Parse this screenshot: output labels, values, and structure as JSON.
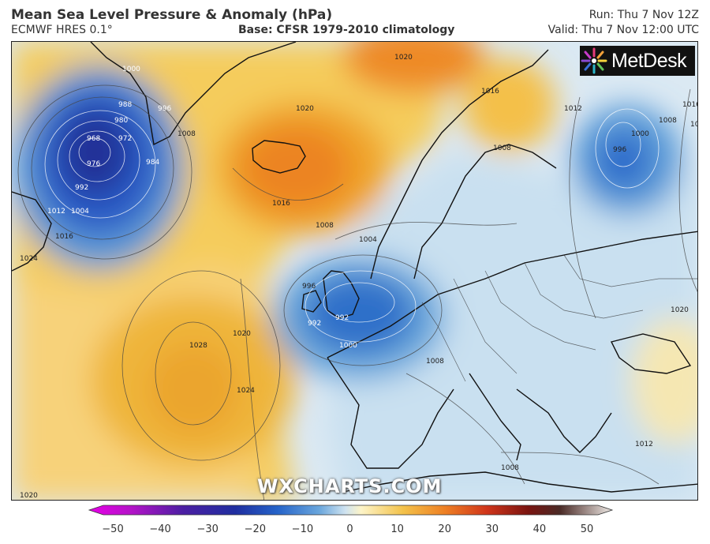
{
  "header": {
    "title": "Mean Sea Level Pressure & Anomaly (hPa)",
    "model": "ECMWF HRES 0.1°",
    "base": "Base: CFSR 1979-2010 climatology",
    "run": "Run: Thu 7 Nov 12Z",
    "valid": "Valid: Thu 7 Nov 12:00 UTC"
  },
  "logo": {
    "text": "MetDesk"
  },
  "watermark": "WXCHARTS.COM",
  "colorbar": {
    "ticks": [
      "−50",
      "−40",
      "−30",
      "−20",
      "−10",
      "0",
      "10",
      "20",
      "30",
      "40",
      "50"
    ],
    "colors": [
      "#e600e6",
      "#7a1fa8",
      "#23208f",
      "#1f50c8",
      "#4d94d6",
      "#aacde6",
      "#fdf4c8",
      "#f3c24a",
      "#ee8024",
      "#d83a1a",
      "#8c1a10",
      "#5c3f3a",
      "#e6e1dc"
    ]
  },
  "map": {
    "isobar_labels": [
      "1000",
      "988",
      "996",
      "980",
      "968",
      "972",
      "976",
      "984",
      "992",
      "1008",
      "1004",
      "1012",
      "1016",
      "1024",
      "1020",
      "1020",
      "1016",
      "1008",
      "1004",
      "996",
      "992",
      "992",
      "1000",
      "1008",
      "1028",
      "1020",
      "1024",
      "1020",
      "1016",
      "1012",
      "1008",
      "1004",
      "996",
      "1000",
      "1008",
      "1016",
      "1016",
      "1012",
      "1008",
      "1020"
    ],
    "anomalies": [
      {
        "name": "greenland-low",
        "anomaly": -35,
        "min_label": "968"
      },
      {
        "name": "iceland-high",
        "anomaly": 20
      },
      {
        "name": "north-high",
        "anomaly": 20
      },
      {
        "name": "atlantic-high",
        "anomaly": 15,
        "max_label": "1028"
      },
      {
        "name": "uk-low",
        "anomaly": -25,
        "min_label": "992"
      },
      {
        "name": "russia-low",
        "anomaly": -20,
        "min_label": "996"
      }
    ]
  }
}
